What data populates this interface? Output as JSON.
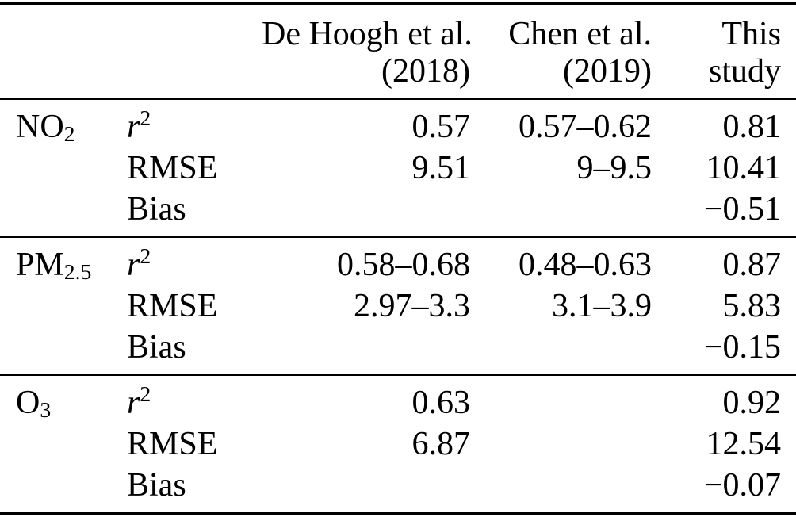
{
  "table": {
    "header": {
      "pollutant_col": "",
      "metric_col": "",
      "col3": {
        "line1": "De Hoogh et al.",
        "line2": "(2018)"
      },
      "col4": {
        "line1": "Chen et al.",
        "line2": "(2019)"
      },
      "col5": {
        "line1": "This",
        "line2": "study"
      }
    },
    "value_column_keys": [
      "de-hoogh-2018",
      "chen-2019",
      "this-study"
    ],
    "sections": [
      {
        "id": "no2",
        "pollutant": {
          "base": "NO",
          "sub": "2"
        },
        "rows": [
          {
            "metric": {
              "base": "r",
              "sup": "2",
              "italic": true
            },
            "values": [
              "0.57",
              "0.57–0.62",
              "0.81"
            ]
          },
          {
            "metric": {
              "base": "RMSE"
            },
            "values": [
              "9.51",
              "9–9.5",
              "10.41"
            ]
          },
          {
            "metric": {
              "base": "Bias"
            },
            "values": [
              "",
              "",
              "−0.51"
            ]
          }
        ]
      },
      {
        "id": "pm25",
        "pollutant": {
          "base": "PM",
          "sub": "2.5"
        },
        "rows": [
          {
            "metric": {
              "base": "r",
              "sup": "2",
              "italic": true
            },
            "values": [
              "0.58–0.68",
              "0.48–0.63",
              "0.87"
            ]
          },
          {
            "metric": {
              "base": "RMSE"
            },
            "values": [
              "2.97–3.3",
              "3.1–3.9",
              "5.83"
            ]
          },
          {
            "metric": {
              "base": "Bias"
            },
            "values": [
              "",
              "",
              "−0.15"
            ]
          }
        ]
      },
      {
        "id": "o3",
        "pollutant": {
          "base": "O",
          "sub": "3"
        },
        "rows": [
          {
            "metric": {
              "base": "r",
              "sup": "2",
              "italic": true
            },
            "values": [
              "0.63",
              "",
              "0.92"
            ]
          },
          {
            "metric": {
              "base": "RMSE"
            },
            "values": [
              "6.87",
              "",
              "12.54"
            ]
          },
          {
            "metric": {
              "base": "Bias"
            },
            "values": [
              "",
              "",
              "−0.07"
            ]
          }
        ]
      }
    ],
    "colors": {
      "text": "#000000",
      "background": "#ffffff",
      "rule": "#000000"
    }
  }
}
